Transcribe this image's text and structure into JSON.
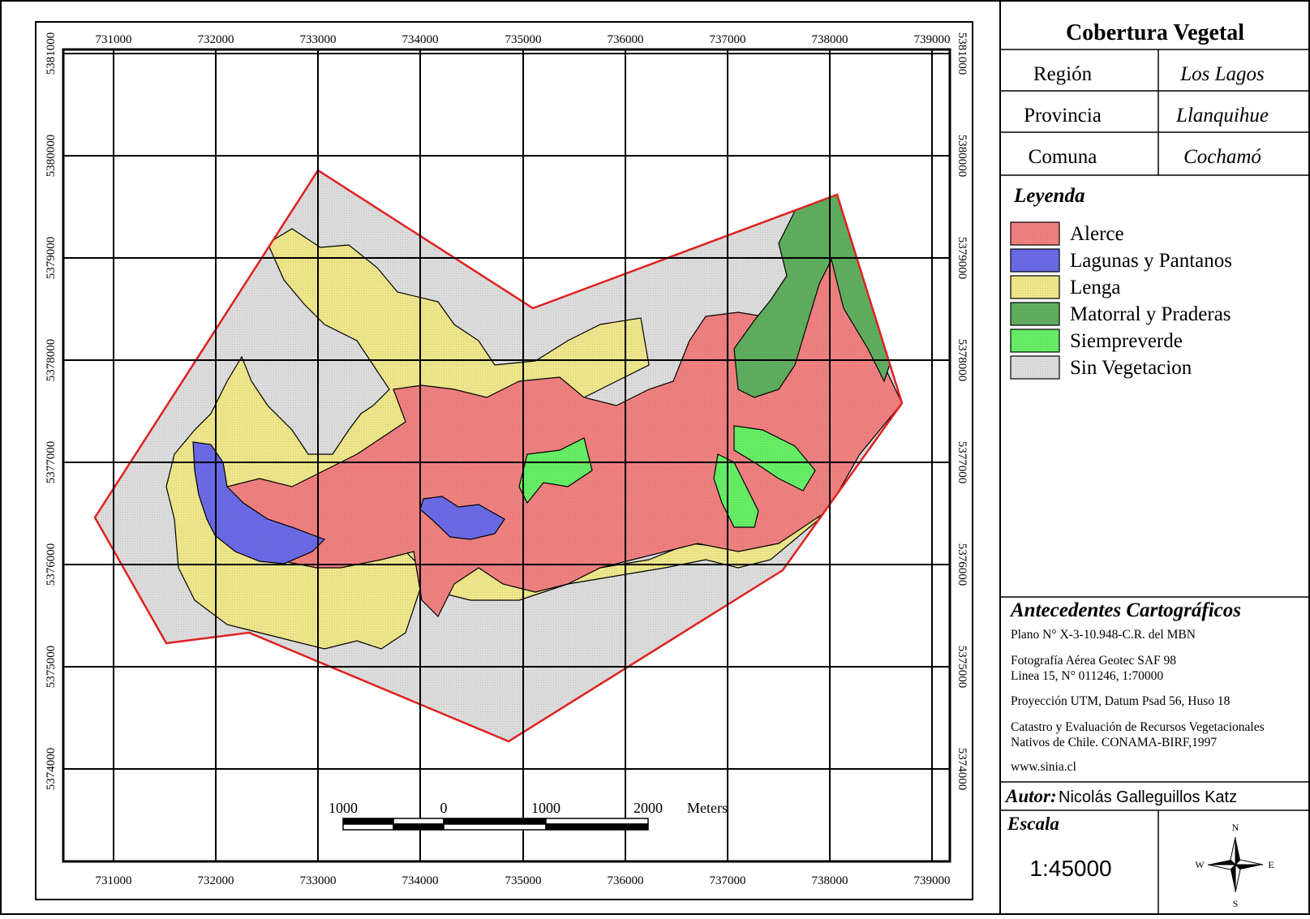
{
  "title": "Cobertura Vegetal",
  "admin": [
    {
      "label": "Región",
      "value": "Los Lagos"
    },
    {
      "label": "Provincia",
      "value": "Llanquihue"
    },
    {
      "label": "Comuna",
      "value": "Cochamó"
    }
  ],
  "legend": {
    "title": "Leyenda",
    "items": [
      {
        "label": "Alerce",
        "color": "#f08080"
      },
      {
        "label": "Lagunas y Pantanos",
        "color": "#6a6ae6"
      },
      {
        "label": "Lenga",
        "color": "#eee68a"
      },
      {
        "label": "Matorral y Praderas",
        "color": "#5fae5f"
      },
      {
        "label": "Siempreverde",
        "color": "#66ee66"
      },
      {
        "label": "Sin Vegetacion",
        "color": "#dcdcdc"
      }
    ]
  },
  "colors": {
    "boundary": "#e02020",
    "frame": "#000000"
  },
  "cartographic": {
    "title": "Antecedentes Cartográficos",
    "lines": [
      [
        "Plano N° X-3-10.948-C.R. del MBN"
      ],
      [
        "Fotografía Aérea Geotec SAF 98",
        "Linea 15, N° 011246, 1:70000"
      ],
      [
        "Proyección UTM, Datum Psad 56, Huso 18"
      ],
      [
        "Catastro y Evaluación de Recursos Vegetacionales",
        "Nativos de Chile. CONAMA-BIRF,1997"
      ],
      [
        "www.sinia.cl"
      ]
    ]
  },
  "author": {
    "label": "Autor:",
    "name": "Nicolás Galleguillos Katz"
  },
  "scale": {
    "label": "Escala",
    "value": "1:45000"
  },
  "scalebar": {
    "ticks": [
      "1000",
      "0",
      "1000",
      "2000"
    ],
    "unit": "Meters"
  },
  "north_arrow": {
    "n": "N",
    "s": "S",
    "e": "E",
    "w": "W"
  },
  "grid": {
    "eastings": [
      "731000",
      "732000",
      "733000",
      "734000",
      "735000",
      "736000",
      "737000",
      "738000",
      "739000"
    ],
    "northings": [
      "5381000",
      "5380000",
      "5379000",
      "5378000",
      "5377000",
      "5376000",
      "5375000",
      "5374000"
    ]
  }
}
